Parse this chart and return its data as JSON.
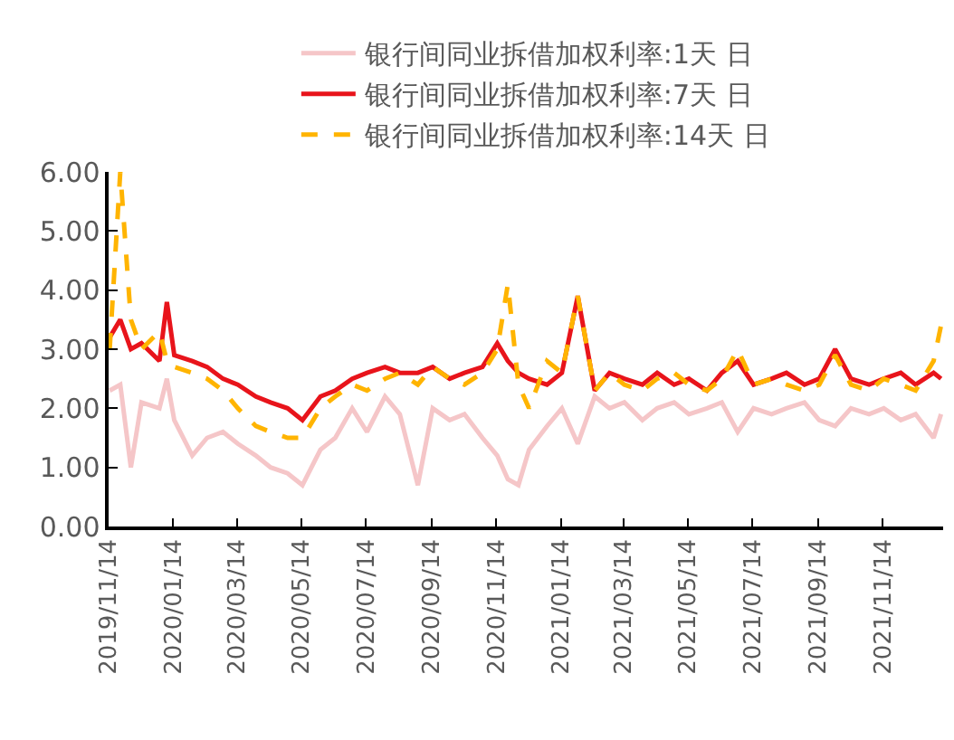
{
  "chart_data": {
    "type": "line",
    "x": [
      "2019-11-15",
      "2019-11-25",
      "2019-12-05",
      "2019-12-15",
      "2020-01-01",
      "2020-01-08",
      "2020-01-15",
      "2020-02-01",
      "2020-02-15",
      "2020-03-01",
      "2020-03-15",
      "2020-04-01",
      "2020-04-15",
      "2020-05-01",
      "2020-05-15",
      "2020-06-01",
      "2020-06-15",
      "2020-07-01",
      "2020-07-15",
      "2020-08-01",
      "2020-08-15",
      "2020-09-01",
      "2020-09-15",
      "2020-10-01",
      "2020-10-15",
      "2020-11-01",
      "2020-11-15",
      "2020-11-25",
      "2020-12-05",
      "2020-12-15",
      "2021-01-01",
      "2021-01-15",
      "2021-01-30",
      "2021-02-15",
      "2021-03-01",
      "2021-03-15",
      "2021-04-01",
      "2021-04-15",
      "2021-05-01",
      "2021-05-15",
      "2021-06-01",
      "2021-06-15",
      "2021-06-30",
      "2021-07-15",
      "2021-08-01",
      "2021-08-15",
      "2021-09-01",
      "2021-09-15",
      "2021-09-30",
      "2021-10-15",
      "2021-11-01",
      "2021-11-15",
      "2021-12-01",
      "2021-12-15",
      "2022-01-01",
      "2022-01-08"
    ],
    "series": [
      {
        "name": "银行间同业拆借加权利率:1天 日",
        "color": "#f5c6c8",
        "line_style": "solid",
        "values": [
          2.3,
          2.4,
          1.0,
          2.1,
          2.0,
          2.5,
          1.8,
          1.2,
          1.5,
          1.6,
          1.4,
          1.2,
          1.0,
          0.9,
          0.7,
          1.3,
          1.5,
          2.0,
          1.6,
          2.2,
          1.9,
          0.7,
          2.0,
          1.8,
          1.9,
          1.5,
          1.2,
          0.8,
          0.7,
          1.3,
          1.7,
          2.0,
          1.4,
          2.2,
          2.0,
          2.1,
          1.8,
          2.0,
          2.1,
          1.9,
          2.0,
          2.1,
          1.6,
          2.0,
          1.9,
          2.0,
          2.1,
          1.8,
          1.7,
          2.0,
          1.9,
          2.0,
          1.8,
          1.9,
          1.5,
          1.9
        ]
      },
      {
        "name": "银行间同业拆借加权利率:7天 日",
        "color": "#e8141b",
        "line_style": "solid",
        "values": [
          3.2,
          3.5,
          3.0,
          3.1,
          2.8,
          3.8,
          2.9,
          2.8,
          2.7,
          2.5,
          2.4,
          2.2,
          2.1,
          2.0,
          1.8,
          2.2,
          2.3,
          2.5,
          2.6,
          2.7,
          2.6,
          2.6,
          2.7,
          2.5,
          2.6,
          2.7,
          3.1,
          2.8,
          2.6,
          2.5,
          2.4,
          2.6,
          3.9,
          2.3,
          2.6,
          2.5,
          2.4,
          2.6,
          2.4,
          2.5,
          2.3,
          2.6,
          2.8,
          2.4,
          2.5,
          2.6,
          2.4,
          2.5,
          3.0,
          2.5,
          2.4,
          2.5,
          2.6,
          2.4,
          2.6,
          2.5
        ]
      },
      {
        "name": "银行间同业拆借加权利率:14天 日",
        "color": "#ffb400",
        "line_style": "dashed",
        "values": [
          3.0,
          6.0,
          3.5,
          3.0,
          3.3,
          2.8,
          2.7,
          2.6,
          2.5,
          2.3,
          2.0,
          1.7,
          1.6,
          1.5,
          1.5,
          2.0,
          2.2,
          2.4,
          2.3,
          2.5,
          2.6,
          2.4,
          2.7,
          2.5,
          2.4,
          2.6,
          3.0,
          4.1,
          2.4,
          2.0,
          2.8,
          2.6,
          3.9,
          2.3,
          2.6,
          2.4,
          2.3,
          2.5,
          2.6,
          2.4,
          2.3,
          2.5,
          3.0,
          2.4,
          2.5,
          2.4,
          2.3,
          2.4,
          2.9,
          2.4,
          2.3,
          2.5,
          2.4,
          2.3,
          2.8,
          3.4
        ]
      }
    ],
    "xlim": [
      "2019-11-14",
      "2022-01-10"
    ],
    "xticks": [
      {
        "value": "2019-11-14",
        "label": "2019/11/14"
      },
      {
        "value": "2020-01-14",
        "label": "2020/01/14"
      },
      {
        "value": "2020-03-14",
        "label": "2020/03/14"
      },
      {
        "value": "2020-05-14",
        "label": "2020/05/14"
      },
      {
        "value": "2020-07-14",
        "label": "2020/07/14"
      },
      {
        "value": "2020-09-14",
        "label": "2020/09/14"
      },
      {
        "value": "2020-11-14",
        "label": "2020/11/14"
      },
      {
        "value": "2021-01-14",
        "label": "2021/01/14"
      },
      {
        "value": "2021-03-14",
        "label": "2021/03/14"
      },
      {
        "value": "2021-05-14",
        "label": "2021/05/14"
      },
      {
        "value": "2021-07-14",
        "label": "2021/07/14"
      },
      {
        "value": "2021-09-14",
        "label": "2021/09/14"
      },
      {
        "value": "2021-11-14",
        "label": "2021/11/14"
      }
    ],
    "ylim": [
      0,
      6
    ],
    "yticks": [
      {
        "value": 0,
        "label": "0.00"
      },
      {
        "value": 1,
        "label": "1.00"
      },
      {
        "value": 2,
        "label": "2.00"
      },
      {
        "value": 3,
        "label": "3.00"
      },
      {
        "value": 4,
        "label": "4.00"
      },
      {
        "value": 5,
        "label": "5.00"
      },
      {
        "value": 6,
        "label": "6.00"
      }
    ],
    "grid": false,
    "legend": "top",
    "marker": "none"
  }
}
